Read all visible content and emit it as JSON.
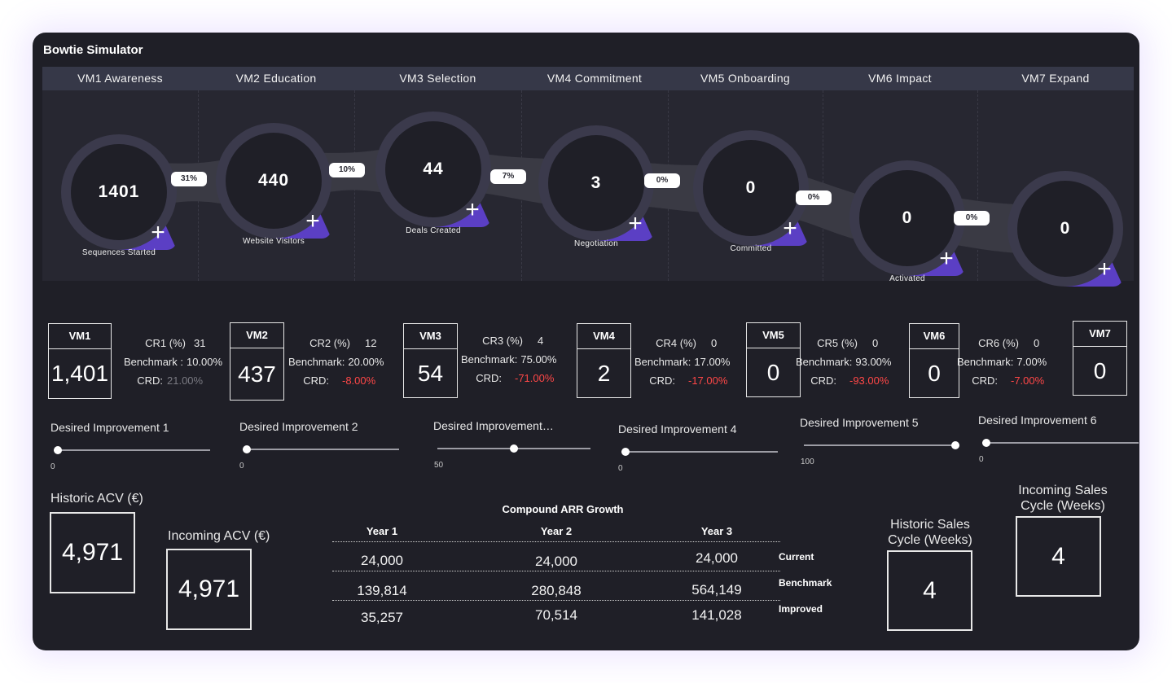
{
  "app": {
    "title": "Bowtie Simulator"
  },
  "stages": [
    "VM1 Awareness",
    "VM2 Education",
    "VM3 Selection",
    "VM4 Commitment",
    "VM5 Onboarding",
    "VM6 Impact",
    "VM7 Expand"
  ],
  "nodes": [
    {
      "value": "1401",
      "label": "Sequences Started"
    },
    {
      "value": "440",
      "label": "Website Visitors"
    },
    {
      "value": "44",
      "label": "Deals Created"
    },
    {
      "value": "3",
      "label": "Negotiation"
    },
    {
      "value": "0",
      "label": "Committed"
    },
    {
      "value": "0",
      "label": "Activated"
    },
    {
      "value": "0",
      "label": ""
    }
  ],
  "conversions": [
    "31%",
    "10%",
    "7%",
    "0%",
    "0%",
    "0%"
  ],
  "colors": {
    "accent": "#5b3fc4",
    "negative": "#ff4747",
    "panel": "#1f1f27"
  },
  "icons": {
    "add": "plus-icon"
  },
  "vm_boxes": [
    {
      "name": "VM1",
      "value": "1,401"
    },
    {
      "name": "VM2",
      "value": "437"
    },
    {
      "name": "VM3",
      "value": "54"
    },
    {
      "name": "VM4",
      "value": "2"
    },
    {
      "name": "VM5",
      "value": "0"
    },
    {
      "name": "VM6",
      "value": "0"
    },
    {
      "name": "VM7",
      "value": "0"
    }
  ],
  "rates": [
    {
      "cr_label": "CR1 (%)",
      "cr": "31",
      "bench_label": "Benchmark :",
      "bench": "10.00%",
      "crd_label": "CRD:",
      "crd": "21.00%"
    },
    {
      "cr_label": "CR2 (%)",
      "cr": "12",
      "bench_label": "Benchmark:",
      "bench": "20.00%",
      "crd_label": "CRD:",
      "crd": "-8.00%"
    },
    {
      "cr_label": "CR3 (%)",
      "cr": "4",
      "bench_label": "Benchmark:",
      "bench": "75.00%",
      "crd_label": "CRD:",
      "crd": "-71.00%"
    },
    {
      "cr_label": "CR4 (%)",
      "cr": "0",
      "bench_label": "Benchmark:",
      "bench": "17.00%",
      "crd_label": "CRD:",
      "crd": "-17.00%"
    },
    {
      "cr_label": "CR5 (%)",
      "cr": "0",
      "bench_label": "Benchmark:",
      "bench": "93.00%",
      "crd_label": "CRD:",
      "crd": "-93.00%"
    },
    {
      "cr_label": "CR6 (%)",
      "cr": "0",
      "bench_label": "Benchmark:",
      "bench": "7.00%",
      "crd_label": "CRD:",
      "crd": "-7.00%"
    }
  ],
  "sliders": [
    {
      "label": "Desired Improvement 1",
      "value": "0",
      "fraction": 0
    },
    {
      "label": "Desired Improvement 2",
      "value": "0",
      "fraction": 0
    },
    {
      "label": "Desired Improvement…",
      "value": "50",
      "fraction": 0.5
    },
    {
      "label": "Desired Improvement 4",
      "value": "0",
      "fraction": 0
    },
    {
      "label": "Desired Improvement 5",
      "value": "100",
      "fraction": 1
    },
    {
      "label": "Desired Improvement 6",
      "value": "0",
      "fraction": 0
    }
  ],
  "acv": {
    "historic_label": "Historic ACV (€)",
    "historic": "4,971",
    "incoming_label": "Incoming ACV (€)",
    "incoming": "4,971"
  },
  "arr": {
    "title": "Compound ARR Growth",
    "years": [
      "Year 1",
      "Year 2",
      "Year 3"
    ],
    "rows": [
      {
        "label": "Current",
        "values": [
          "24,000",
          "24,000",
          "24,000"
        ]
      },
      {
        "label": "Benchmark",
        "values": [
          "139,814",
          "280,848",
          "564,149"
        ]
      },
      {
        "label": "Improved",
        "values": [
          "35,257",
          "70,514",
          "141,028"
        ]
      }
    ]
  },
  "sales_cycle": {
    "historic_label": "Historic Sales Cycle (Weeks)",
    "historic": "4",
    "incoming_label": "Incoming  Sales Cycle (Weeks)",
    "incoming": "4"
  }
}
